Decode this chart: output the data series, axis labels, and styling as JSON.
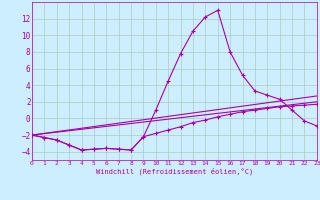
{
  "xlabel": "Windchill (Refroidissement éolien,°C)",
  "background_color": "#cceeff",
  "grid_color": "#aaccbb",
  "line_color": "#aa00aa",
  "xlim": [
    0,
    23
  ],
  "ylim": [
    -5,
    14
  ],
  "yticks": [
    -4,
    -2,
    0,
    2,
    4,
    6,
    8,
    10,
    12
  ],
  "xticks": [
    0,
    1,
    2,
    3,
    4,
    5,
    6,
    7,
    8,
    9,
    10,
    11,
    12,
    13,
    14,
    15,
    16,
    17,
    18,
    19,
    20,
    21,
    22,
    23
  ],
  "series": [
    {
      "x": [
        0,
        1,
        2,
        3,
        4,
        5,
        6,
        7,
        8,
        9,
        10,
        11,
        12,
        13,
        14,
        15,
        16,
        17,
        18,
        19,
        20,
        21,
        22,
        23
      ],
      "y": [
        -2.0,
        -2.3,
        -2.6,
        -3.2,
        -3.8,
        -3.7,
        -3.6,
        -3.7,
        -3.8,
        -2.2,
        1.0,
        4.5,
        7.8,
        10.5,
        12.2,
        13.0,
        8.0,
        5.2,
        3.3,
        2.8,
        2.3,
        1.0,
        -0.3,
        -0.9
      ],
      "markers": true
    },
    {
      "x": [
        0,
        1,
        2,
        3,
        4,
        5,
        6,
        7,
        8,
        9,
        10,
        11,
        12,
        13,
        14,
        15,
        16,
        17,
        18,
        19,
        20,
        21,
        22,
        23
      ],
      "y": [
        -2.0,
        -2.3,
        -2.6,
        -3.2,
        -3.8,
        -3.7,
        -3.6,
        -3.7,
        -3.8,
        -2.2,
        -1.8,
        -1.4,
        -1.0,
        -0.5,
        -0.2,
        0.2,
        0.5,
        0.8,
        1.0,
        1.2,
        1.4,
        1.5,
        1.6,
        1.7
      ],
      "markers": true
    },
    {
      "x": [
        0,
        23
      ],
      "y": [
        -2.0,
        2.0
      ],
      "markers": false
    },
    {
      "x": [
        0,
        23
      ],
      "y": [
        -2.0,
        2.7
      ],
      "markers": false
    }
  ]
}
